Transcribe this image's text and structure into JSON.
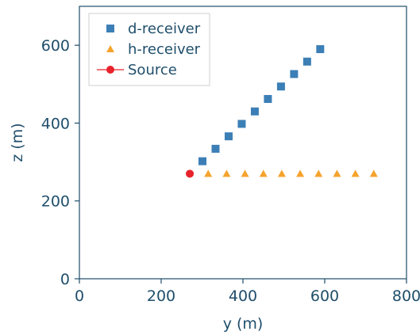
{
  "chart_data": {
    "type": "scatter",
    "xlabel": "y (m)",
    "ylabel": "z (m)",
    "xlim": [
      0,
      800
    ],
    "ylim": [
      0,
      700
    ],
    "xticks": [
      0,
      200,
      400,
      600,
      800
    ],
    "yticks": [
      0,
      200,
      400,
      600
    ],
    "grid": false,
    "legend_position": "top-left",
    "series": [
      {
        "name": "d-receiver",
        "marker": "square",
        "color": "#3b7fb6",
        "x": [
          301,
          333,
          365,
          397,
          429,
          461,
          493,
          525,
          557,
          589
        ],
        "y": [
          302,
          334,
          366,
          398,
          430,
          462,
          494,
          526,
          558,
          590
        ]
      },
      {
        "name": "h-receiver",
        "marker": "triangle",
        "color": "#f5a32d",
        "x": [
          315,
          360,
          405,
          450,
          495,
          540,
          585,
          630,
          675,
          720
        ],
        "y": [
          270,
          270,
          270,
          270,
          270,
          270,
          270,
          270,
          270,
          270
        ]
      },
      {
        "name": "Source",
        "marker": "circle-line",
        "color": "#e8222b",
        "x": [
          270
        ],
        "y": [
          270
        ]
      }
    ]
  }
}
